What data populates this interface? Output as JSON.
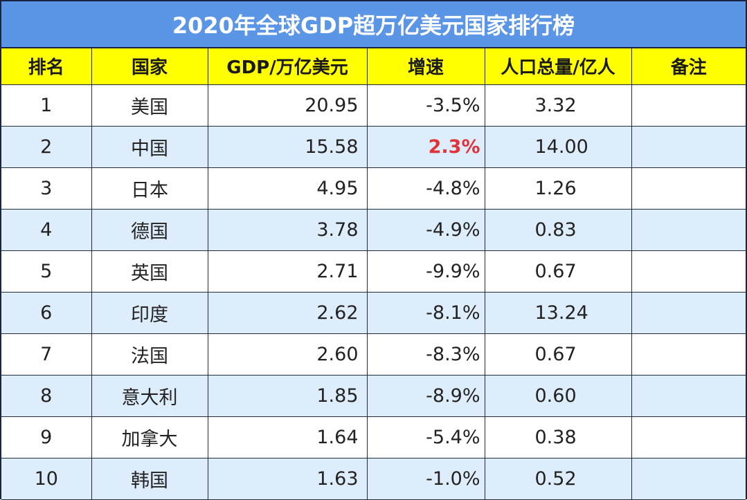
{
  "title": "2020年全球GDP超万亿美元国家排行榜",
  "colors": {
    "title_bg": "#5b95e6",
    "title_text": "#ffffff",
    "header_bg": "#ffff00",
    "row_alt_bg": "#deedfc",
    "positive_growth": "#e0333a",
    "border": "#1f2a38"
  },
  "table": {
    "headers": [
      "排名",
      "国家",
      "GDP/万亿美元",
      "增速",
      "人口总量/亿人",
      "备注"
    ],
    "rows": [
      {
        "rank": "1",
        "country": "美国",
        "gdp": "20.95",
        "growth": "-3.5%",
        "population": "3.32",
        "note": ""
      },
      {
        "rank": "2",
        "country": "中国",
        "gdp": "15.58",
        "growth": "2.3%",
        "population": "14.00",
        "note": "",
        "highlight_growth": true
      },
      {
        "rank": "3",
        "country": "日本",
        "gdp": "4.95",
        "growth": "-4.8%",
        "population": "1.26",
        "note": ""
      },
      {
        "rank": "4",
        "country": "德国",
        "gdp": "3.78",
        "growth": "-4.9%",
        "population": "0.83",
        "note": ""
      },
      {
        "rank": "5",
        "country": "英国",
        "gdp": "2.71",
        "growth": "-9.9%",
        "population": "0.67",
        "note": ""
      },
      {
        "rank": "6",
        "country": "印度",
        "gdp": "2.62",
        "growth": "-8.1%",
        "population": "13.24",
        "note": ""
      },
      {
        "rank": "7",
        "country": "法国",
        "gdp": "2.60",
        "growth": "-8.3%",
        "population": "0.67",
        "note": ""
      },
      {
        "rank": "8",
        "country": "意大利",
        "gdp": "1.85",
        "growth": "-8.9%",
        "population": "0.60",
        "note": ""
      },
      {
        "rank": "9",
        "country": "加拿大",
        "gdp": "1.64",
        "growth": "-5.4%",
        "population": "0.38",
        "note": ""
      },
      {
        "rank": "10",
        "country": "韩国",
        "gdp": "1.63",
        "growth": "-1.0%",
        "population": "0.52",
        "note": ""
      }
    ]
  }
}
